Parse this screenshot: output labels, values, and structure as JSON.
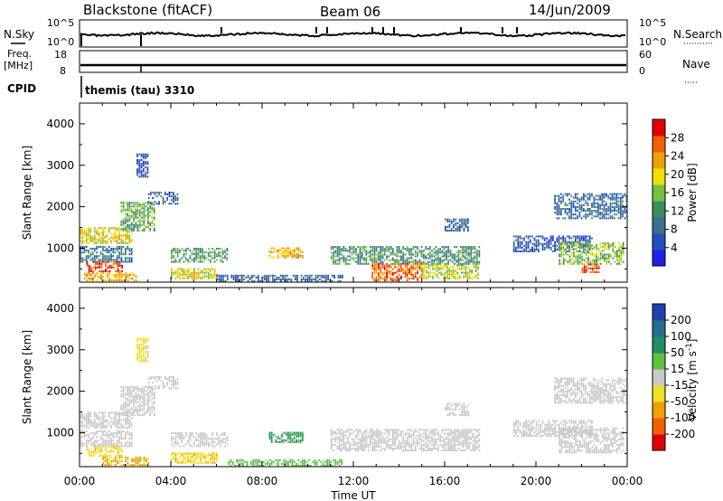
{
  "header": {
    "station": "Blackstone (fitACF)",
    "beam": "Beam 06",
    "date": "14/Jun/2009"
  },
  "panels": {
    "nsky": {
      "label": "N.Sky",
      "ticks": [
        "10^5",
        "10^0"
      ],
      "right_label": "N.Search",
      "right_ticks": [
        "10^5",
        "10^0"
      ]
    },
    "freq": {
      "label_line1": "Freq.",
      "label_line2": "[MHz]",
      "ticks": [
        "18",
        "8"
      ],
      "right_label": "Nave",
      "right_ticks": [
        "60",
        "0"
      ]
    },
    "cpid": {
      "label": "CPID",
      "value": "themis (tau) 3310"
    }
  },
  "colors": {
    "power": [
      "#2020e8",
      "#2050c0",
      "#406e90",
      "#3a8f60",
      "#78c040",
      "#f0e000",
      "#f0a000",
      "#f06000",
      "#e00000"
    ],
    "velocity": [
      "#2040b0",
      "#207090",
      "#209060",
      "#60c040",
      "#c8c8c8",
      "#f0e020",
      "#f0a000",
      "#f06000",
      "#e00000"
    ],
    "ground_scatter": "#c8c8c8"
  },
  "chart_data": [
    {
      "type": "heatmap",
      "quantity": "power",
      "xlabel": "",
      "ylabel": "Slant Range [km]",
      "xlim": [
        0,
        24
      ],
      "ylim": [
        180,
        4500
      ],
      "yticks": [
        "1000",
        "2000",
        "3000",
        "4000"
      ],
      "colorbar": {
        "label": "Power [dB]",
        "range": [
          0,
          32
        ],
        "ticks": [
          "4",
          "8",
          "12",
          "16",
          "20",
          "24",
          "28"
        ]
      },
      "echo_regions": [
        {
          "t0": 0.0,
          "t1": 2.3,
          "r0": 1100,
          "r1": 1500,
          "level": 20
        },
        {
          "t0": 0.3,
          "t1": 1.9,
          "r0": 420,
          "r1": 650,
          "level": 28
        },
        {
          "t0": 0.0,
          "t1": 2.3,
          "r0": 650,
          "r1": 1050,
          "level": 9
        },
        {
          "t0": 1.8,
          "t1": 3.3,
          "r0": 1400,
          "r1": 2100,
          "level": 14
        },
        {
          "t0": 3.0,
          "t1": 4.3,
          "r0": 2050,
          "r1": 2350,
          "level": 7
        },
        {
          "t0": 2.5,
          "t1": 3.0,
          "r0": 2700,
          "r1": 3250,
          "level": 5
        },
        {
          "t0": 0.2,
          "t1": 2.5,
          "r0": 200,
          "r1": 400,
          "level": 22
        },
        {
          "t0": 4.0,
          "t1": 6.5,
          "r0": 650,
          "r1": 1000,
          "level": 13
        },
        {
          "t0": 4.0,
          "t1": 6.0,
          "r0": 250,
          "r1": 500,
          "level": 19
        },
        {
          "t0": 8.3,
          "t1": 9.8,
          "r0": 750,
          "r1": 1000,
          "level": 22
        },
        {
          "t0": 6.0,
          "t1": 11.5,
          "r0": 180,
          "r1": 320,
          "level": 8
        },
        {
          "t0": 11.0,
          "t1": 17.5,
          "r0": 600,
          "r1": 1050,
          "level": 12
        },
        {
          "t0": 12.8,
          "t1": 15.0,
          "r0": 200,
          "r1": 650,
          "level": 26
        },
        {
          "t0": 15.0,
          "t1": 17.5,
          "r0": 250,
          "r1": 600,
          "level": 18
        },
        {
          "t0": 16.0,
          "t1": 17.0,
          "r0": 1400,
          "r1": 1700,
          "level": 7
        },
        {
          "t0": 19.0,
          "t1": 22.5,
          "r0": 900,
          "r1": 1300,
          "level": 6
        },
        {
          "t0": 21.0,
          "t1": 23.8,
          "r0": 600,
          "r1": 1100,
          "level": 16
        },
        {
          "t0": 22.0,
          "t1": 22.8,
          "r0": 400,
          "r1": 600,
          "level": 27
        },
        {
          "t0": 20.8,
          "t1": 24.0,
          "r0": 1700,
          "r1": 2300,
          "level": 8
        }
      ]
    },
    {
      "type": "heatmap",
      "quantity": "velocity",
      "xlabel": "Time UT",
      "ylabel": "Slant Range [km]",
      "xlim": [
        0,
        24
      ],
      "ylim": [
        180,
        4500
      ],
      "xticks": [
        "00:00",
        "04:00",
        "08:00",
        "12:00",
        "16:00",
        "20:00",
        "00:00"
      ],
      "yticks": [
        "1000",
        "2000",
        "3000",
        "4000"
      ],
      "colorbar": {
        "label": "Velocity [m s^-1]",
        "range": [
          -250,
          250
        ],
        "ticks": [
          "-200",
          "-100",
          "-50",
          "-15",
          "15",
          "50",
          "100",
          "200"
        ]
      },
      "echo_regions": [
        {
          "t0": 0.0,
          "t1": 2.3,
          "r0": 1100,
          "r1": 1500,
          "value": 0
        },
        {
          "t0": 0.3,
          "t1": 1.9,
          "r0": 420,
          "r1": 650,
          "value": -40
        },
        {
          "t0": 0.0,
          "t1": 2.3,
          "r0": 650,
          "r1": 1050,
          "value": 0
        },
        {
          "t0": 1.8,
          "t1": 3.3,
          "r0": 1400,
          "r1": 2100,
          "value": 0
        },
        {
          "t0": 3.0,
          "t1": 4.3,
          "r0": 2050,
          "r1": 2350,
          "value": 0
        },
        {
          "t0": 2.5,
          "t1": 3.0,
          "r0": 2700,
          "r1": 3250,
          "value": -30
        },
        {
          "t0": 1.0,
          "t1": 3.0,
          "r0": 200,
          "r1": 400,
          "value": -60
        },
        {
          "t0": 4.0,
          "t1": 6.5,
          "r0": 650,
          "r1": 1000,
          "value": 0
        },
        {
          "t0": 4.0,
          "t1": 6.0,
          "r0": 250,
          "r1": 500,
          "value": -40
        },
        {
          "t0": 8.3,
          "t1": 9.8,
          "r0": 750,
          "r1": 1000,
          "value": 60
        },
        {
          "t0": 6.5,
          "t1": 11.5,
          "r0": 180,
          "r1": 320,
          "value": 30
        },
        {
          "t0": 11.0,
          "t1": 17.5,
          "r0": 550,
          "r1": 1050,
          "value": 0
        },
        {
          "t0": 16.0,
          "t1": 17.0,
          "r0": 1400,
          "r1": 1700,
          "value": 0
        },
        {
          "t0": 19.0,
          "t1": 22.5,
          "r0": 900,
          "r1": 1300,
          "value": 0
        },
        {
          "t0": 21.0,
          "t1": 23.8,
          "r0": 500,
          "r1": 1100,
          "value": 0
        },
        {
          "t0": 20.8,
          "t1": 24.0,
          "r0": 1700,
          "r1": 2300,
          "value": 0
        }
      ]
    }
  ]
}
